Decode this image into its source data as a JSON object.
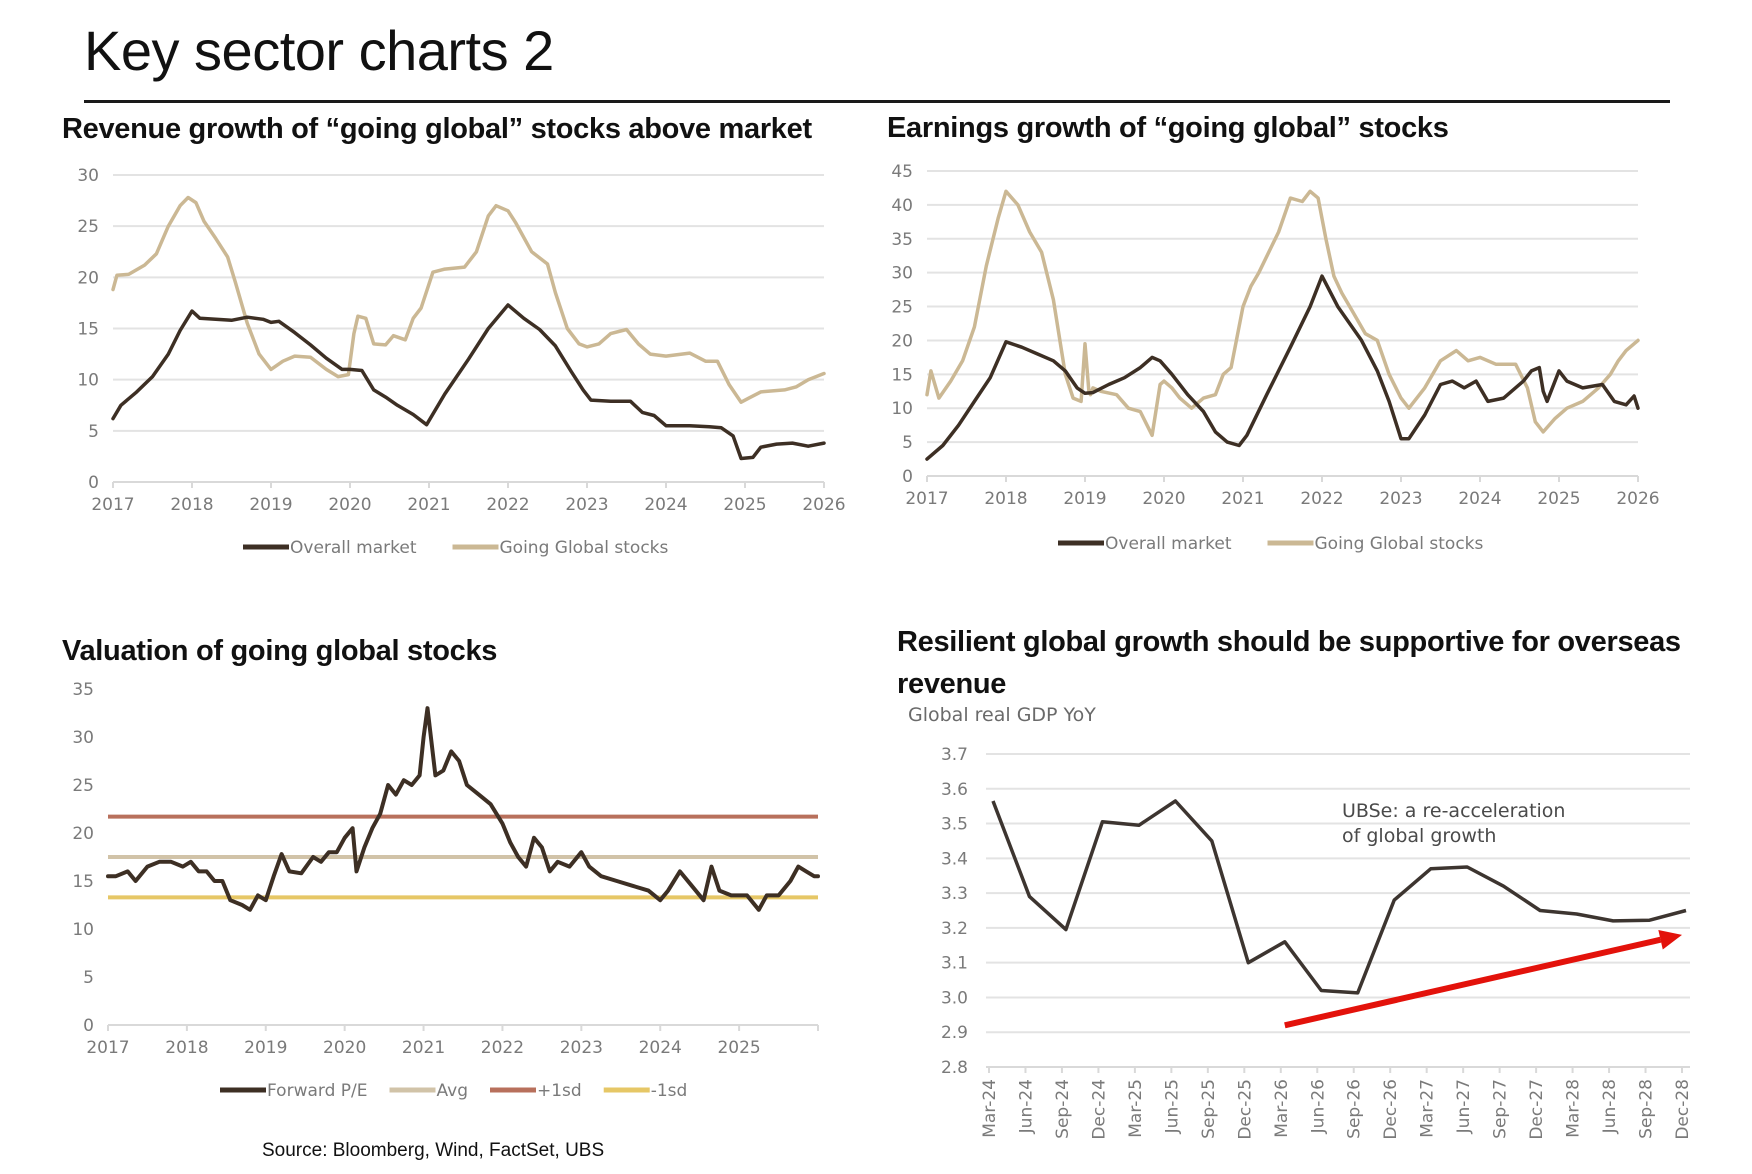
{
  "page": {
    "title": "Key sector charts 2",
    "source": "Source: Bloomberg, Wind, FactSet, UBS"
  },
  "colors": {
    "overall_market": "#3d2f24",
    "going_global": "#cbb894",
    "forward_pe": "#3d2f24",
    "avg": "#d1c3a8",
    "plus_1sd": "#b8705c",
    "minus_1sd": "#e6c766",
    "gdp_line": "#3d3530",
    "arrow": "#e3120b",
    "grid": "#e3e3e3",
    "axis": "#d9d9d9"
  },
  "chart_data": [
    {
      "id": "revenue",
      "type": "line",
      "title": "Revenue growth of “going global” stocks above market",
      "xlabel": "",
      "ylabel": "",
      "xlim": [
        2017,
        2026
      ],
      "ylim": [
        0,
        30
      ],
      "yticks": [
        0,
        5,
        10,
        15,
        20,
        25,
        30
      ],
      "xticks": [
        "2017",
        "2018",
        "2019",
        "2020",
        "2021",
        "2022",
        "2023",
        "2024",
        "2025",
        "2026"
      ],
      "grid": true,
      "legend_position": "bottom",
      "series": [
        {
          "name": "Overall market",
          "color_key": "overall_market",
          "x": [
            2017.0,
            2017.1,
            2017.3,
            2017.5,
            2017.7,
            2017.85,
            2018.0,
            2018.1,
            2018.3,
            2018.5,
            2018.7,
            2018.9,
            2019.0,
            2019.1,
            2019.3,
            2019.5,
            2019.7,
            2019.9,
            2020.0,
            2020.15,
            2020.3,
            2020.45,
            2020.6,
            2020.8,
            2020.97,
            2021.2,
            2021.5,
            2021.75,
            2022.0,
            2022.2,
            2022.4,
            2022.6,
            2022.8,
            2022.95,
            2023.05,
            2023.3,
            2023.55,
            2023.7,
            2023.85,
            2024.0,
            2024.3,
            2024.55,
            2024.7,
            2024.85,
            2024.95,
            2025.1,
            2025.2,
            2025.4,
            2025.6,
            2025.8,
            2026.0
          ],
          "y": [
            6.2,
            7.5,
            8.8,
            10.3,
            12.5,
            14.8,
            16.7,
            16.0,
            15.9,
            15.8,
            16.1,
            15.9,
            15.6,
            15.7,
            14.6,
            13.4,
            12.1,
            11.0,
            11.0,
            10.9,
            9.0,
            8.3,
            7.5,
            6.6,
            5.6,
            8.6,
            12.0,
            15.0,
            17.3,
            16.0,
            14.9,
            13.3,
            10.8,
            9.0,
            8.0,
            7.9,
            7.9,
            6.8,
            6.5,
            5.5,
            5.5,
            5.4,
            5.3,
            4.5,
            2.3,
            2.4,
            3.4,
            3.7,
            3.8,
            3.5,
            3.8
          ]
        },
        {
          "name": "Going Global stocks",
          "color_key": "going_global",
          "x": [
            2017.0,
            2017.05,
            2017.2,
            2017.4,
            2017.55,
            2017.7,
            2017.85,
            2017.95,
            2018.05,
            2018.15,
            2018.3,
            2018.45,
            2018.55,
            2018.7,
            2018.85,
            2019.0,
            2019.15,
            2019.3,
            2019.5,
            2019.7,
            2019.85,
            2019.98,
            2020.05,
            2020.1,
            2020.2,
            2020.3,
            2020.45,
            2020.55,
            2020.7,
            2020.8,
            2020.9,
            2021.05,
            2021.2,
            2021.45,
            2021.6,
            2021.75,
            2021.85,
            2022.0,
            2022.1,
            2022.3,
            2022.5,
            2022.6,
            2022.75,
            2022.9,
            2023.0,
            2023.15,
            2023.3,
            2023.5,
            2023.65,
            2023.8,
            2024.0,
            2024.3,
            2024.5,
            2024.65,
            2024.8,
            2024.95,
            2025.05,
            2025.2,
            2025.5,
            2025.65,
            2025.8,
            2026.0
          ],
          "y": [
            18.8,
            20.2,
            20.3,
            21.2,
            22.3,
            25.0,
            27.0,
            27.8,
            27.3,
            25.5,
            23.8,
            22.0,
            19.5,
            15.5,
            12.5,
            11.0,
            11.8,
            12.3,
            12.2,
            11.0,
            10.3,
            10.5,
            14.5,
            16.2,
            16.0,
            13.5,
            13.4,
            14.3,
            13.9,
            16.0,
            17.0,
            20.5,
            20.8,
            21.0,
            22.5,
            26.0,
            27.0,
            26.5,
            25.3,
            22.5,
            21.3,
            18.5,
            15.0,
            13.5,
            13.2,
            13.5,
            14.5,
            14.9,
            13.5,
            12.5,
            12.3,
            12.6,
            11.8,
            11.8,
            9.5,
            7.8,
            8.2,
            8.8,
            9.0,
            9.3,
            10.0,
            10.6
          ]
        }
      ]
    },
    {
      "id": "earnings",
      "type": "line",
      "title": "Earnings growth of “going global” stocks",
      "xlabel": "",
      "ylabel": "",
      "xlim": [
        2017,
        2026
      ],
      "ylim": [
        0,
        45
      ],
      "yticks": [
        0,
        5,
        10,
        15,
        20,
        25,
        30,
        35,
        40,
        45
      ],
      "xticks": [
        "2017",
        "2018",
        "2019",
        "2020",
        "2021",
        "2022",
        "2023",
        "2024",
        "2025",
        "2026"
      ],
      "grid": true,
      "legend_position": "bottom",
      "series": [
        {
          "name": "Overall market",
          "color_key": "overall_market",
          "x": [
            2017.0,
            2017.2,
            2017.4,
            2017.6,
            2017.8,
            2018.0,
            2018.2,
            2018.4,
            2018.6,
            2018.75,
            2018.9,
            2019.0,
            2019.1,
            2019.3,
            2019.5,
            2019.7,
            2019.85,
            2019.95,
            2020.1,
            2020.3,
            2020.5,
            2020.65,
            2020.8,
            2020.95,
            2021.05,
            2021.3,
            2021.6,
            2021.85,
            2022.0,
            2022.2,
            2022.5,
            2022.7,
            2022.85,
            2023.0,
            2023.1,
            2023.3,
            2023.5,
            2023.65,
            2023.8,
            2023.95,
            2024.1,
            2024.3,
            2024.55,
            2024.65,
            2024.75,
            2024.8,
            2024.85,
            2025.0,
            2025.1,
            2025.3,
            2025.55,
            2025.7,
            2025.85,
            2025.95,
            2026.0
          ],
          "y": [
            2.5,
            4.5,
            7.5,
            11.0,
            14.5,
            19.8,
            19.0,
            18.0,
            17.0,
            15.5,
            13.0,
            12.2,
            12.3,
            13.5,
            14.5,
            16.0,
            17.5,
            17.0,
            15.0,
            12.0,
            9.5,
            6.5,
            5.0,
            4.5,
            6.0,
            12.0,
            19.0,
            25.0,
            29.5,
            25.0,
            20.0,
            15.5,
            11.0,
            5.5,
            5.5,
            9.0,
            13.5,
            14.0,
            13.0,
            14.0,
            11.0,
            11.5,
            14.0,
            15.5,
            16.0,
            12.5,
            11.0,
            15.5,
            14.0,
            13.0,
            13.5,
            11.0,
            10.5,
            11.8,
            10.0
          ]
        },
        {
          "name": "Going Global stocks",
          "color_key": "going_global",
          "x": [
            2017.0,
            2017.05,
            2017.15,
            2017.3,
            2017.45,
            2017.6,
            2017.75,
            2017.9,
            2018.0,
            2018.15,
            2018.3,
            2018.45,
            2018.6,
            2018.75,
            2018.85,
            2018.95,
            2019.0,
            2019.05,
            2019.07,
            2019.1,
            2019.2,
            2019.4,
            2019.55,
            2019.7,
            2019.85,
            2019.95,
            2020.0,
            2020.1,
            2020.2,
            2020.35,
            2020.5,
            2020.65,
            2020.75,
            2020.85,
            2021.0,
            2021.1,
            2021.2,
            2021.45,
            2021.6,
            2021.75,
            2021.85,
            2021.95,
            2022.05,
            2022.15,
            2022.25,
            2022.4,
            2022.55,
            2022.7,
            2022.85,
            2023.0,
            2023.1,
            2023.3,
            2023.5,
            2023.7,
            2023.85,
            2024.0,
            2024.2,
            2024.45,
            2024.6,
            2024.7,
            2024.8,
            2024.95,
            2025.1,
            2025.3,
            2025.5,
            2025.65,
            2025.75,
            2025.85,
            2026.0
          ],
          "y": [
            12.0,
            15.5,
            11.5,
            14.0,
            17.0,
            22.0,
            31.0,
            38.0,
            42.0,
            40.0,
            36.0,
            33.0,
            26.0,
            15.0,
            11.5,
            11.0,
            19.5,
            12.5,
            12.0,
            13.0,
            12.5,
            12.0,
            10.0,
            9.5,
            6.0,
            13.5,
            14.0,
            13.0,
            11.5,
            10.0,
            11.5,
            12.0,
            15.0,
            16.0,
            25.0,
            28.0,
            30.0,
            36.0,
            41.0,
            40.5,
            42.0,
            41.0,
            35.0,
            29.5,
            27.0,
            24.0,
            21.0,
            20.0,
            15.0,
            11.5,
            10.0,
            13.0,
            17.0,
            18.5,
            17.0,
            17.5,
            16.5,
            16.5,
            13.0,
            8.0,
            6.5,
            8.5,
            10.0,
            11.0,
            13.0,
            15.0,
            17.0,
            18.5,
            20.0
          ]
        }
      ]
    },
    {
      "id": "valuation",
      "type": "line",
      "title": "Valuation of going global stocks",
      "xlabel": "",
      "ylabel": "",
      "xlim": [
        2017,
        2026
      ],
      "ylim": [
        0,
        35
      ],
      "yticks": [
        0,
        5,
        10,
        15,
        20,
        25,
        30,
        35
      ],
      "xticks": [
        "2017",
        "2018",
        "2019",
        "2020",
        "2021",
        "2022",
        "2023",
        "2024",
        "2025"
      ],
      "grid": false,
      "legend_position": "bottom",
      "series": [
        {
          "name": "Forward P/E",
          "color_key": "forward_pe",
          "x": [
            2017.0,
            2017.1,
            2017.25,
            2017.35,
            2017.5,
            2017.65,
            2017.8,
            2017.95,
            2018.05,
            2018.15,
            2018.25,
            2018.35,
            2018.45,
            2018.55,
            2018.7,
            2018.8,
            2018.9,
            2019.0,
            2019.1,
            2019.2,
            2019.3,
            2019.45,
            2019.6,
            2019.7,
            2019.8,
            2019.9,
            2020.0,
            2020.1,
            2020.15,
            2020.25,
            2020.35,
            2020.45,
            2020.55,
            2020.65,
            2020.75,
            2020.85,
            2020.95,
            2021.0,
            2021.05,
            2021.15,
            2021.25,
            2021.35,
            2021.45,
            2021.55,
            2021.7,
            2021.85,
            2022.0,
            2022.1,
            2022.2,
            2022.3,
            2022.4,
            2022.5,
            2022.6,
            2022.7,
            2022.85,
            2023.0,
            2023.1,
            2023.25,
            2023.45,
            2023.65,
            2023.85,
            2024.0,
            2024.1,
            2024.25,
            2024.4,
            2024.55,
            2024.65,
            2024.75,
            2024.9,
            2025.1,
            2025.25,
            2025.35,
            2025.5,
            2025.65,
            2025.75,
            2025.85,
            2025.95,
            2026.0
          ],
          "y": [
            15.5,
            15.5,
            16.0,
            15.0,
            16.5,
            17.0,
            17.0,
            16.5,
            17.0,
            16.0,
            16.0,
            15.0,
            15.0,
            13.0,
            12.5,
            12.0,
            13.5,
            13.0,
            15.5,
            17.8,
            16.0,
            15.8,
            17.5,
            17.0,
            18.0,
            18.0,
            19.5,
            20.5,
            16.0,
            18.5,
            20.5,
            22.0,
            25.0,
            24.0,
            25.5,
            25.0,
            26.0,
            30.0,
            33.0,
            26.0,
            26.5,
            28.5,
            27.5,
            25.0,
            24.0,
            23.0,
            21.0,
            19.0,
            17.5,
            16.5,
            19.5,
            18.5,
            16.0,
            17.0,
            16.5,
            18.0,
            16.5,
            15.5,
            15.0,
            14.5,
            14.0,
            13.0,
            14.0,
            16.0,
            14.5,
            13.0,
            16.5,
            14.0,
            13.5,
            13.5,
            12.0,
            13.5,
            13.5,
            15.0,
            16.5,
            16.0,
            15.5,
            15.5
          ]
        },
        {
          "name": "Avg",
          "color_key": "avg",
          "constant": 17.5
        },
        {
          "name": "+1sd",
          "color_key": "plus_1sd",
          "constant": 21.7
        },
        {
          "name": "-1sd",
          "color_key": "minus_1sd",
          "constant": 13.3
        }
      ]
    },
    {
      "id": "gdp",
      "type": "line",
      "title": "Resilient global growth should be supportive for overseas revenue",
      "xlabel": "",
      "ylabel": "Global real GDP YoY",
      "ylim": [
        2.8,
        3.7
      ],
      "yticks": [
        "2.8",
        "2.9",
        "3.0",
        "3.1",
        "3.2",
        "3.3",
        "3.4",
        "3.5",
        "3.6",
        "3.7"
      ],
      "grid": true,
      "categories": [
        "Mar-24",
        "Jun-24",
        "Sep-24",
        "Dec-24",
        "Mar-25",
        "Jun-25",
        "Sep-25",
        "Dec-25",
        "Mar-26",
        "Jun-26",
        "Sep-26",
        "Dec-26",
        "Mar-27",
        "Jun-27",
        "Sep-27",
        "Dec-27",
        "Mar-28",
        "Jun-28",
        "Sep-28",
        "Dec-28"
      ],
      "series": [
        {
          "name": "Global real GDP YoY",
          "color_key": "gdp_line",
          "values": [
            3.565,
            3.29,
            3.195,
            3.505,
            3.495,
            3.565,
            3.45,
            3.1,
            3.16,
            3.02,
            3.013,
            3.28,
            3.37,
            3.375,
            3.32,
            3.25,
            3.24,
            3.22,
            3.222,
            3.25
          ]
        }
      ],
      "annotation": {
        "lines": [
          "UBSe: a re-acceleration",
          "of global growth"
        ],
        "arrow": {
          "from": {
            "category": "Mar-26",
            "value": 2.92
          },
          "to": {
            "category": "Dec-28",
            "value": 3.18
          }
        }
      }
    }
  ]
}
